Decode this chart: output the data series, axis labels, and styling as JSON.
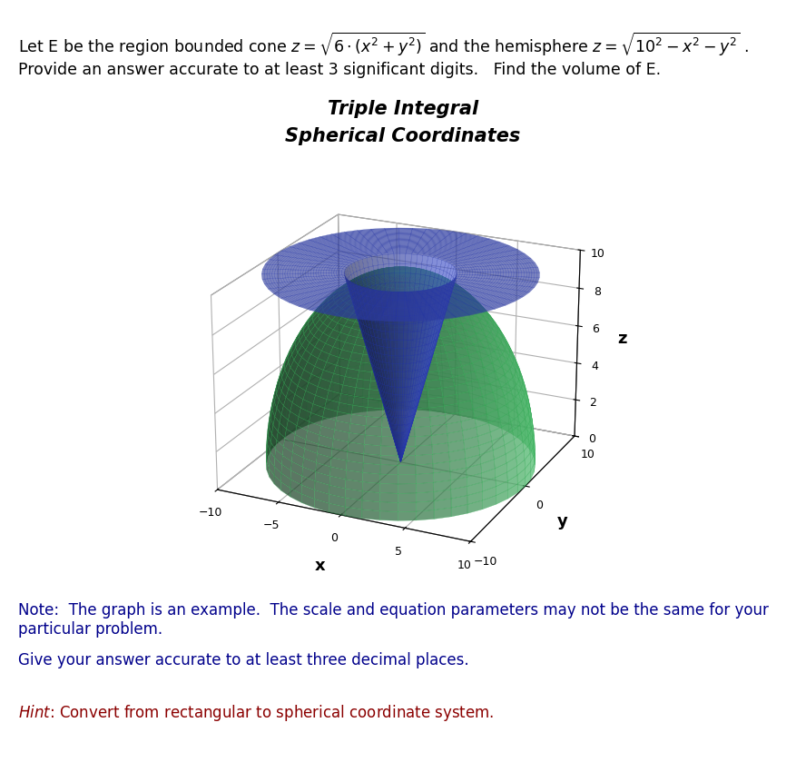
{
  "title_line1": "Triple Integral",
  "title_line2": "Spherical Coordinates",
  "title_fontsize": 15,
  "R": 10,
  "cone_k": 6,
  "xlim": [
    -10,
    10
  ],
  "ylim": [
    -10,
    10
  ],
  "zlim": [
    0,
    10
  ],
  "hemisphere_color": "#55cc77",
  "hemisphere_edge": "#33aa55",
  "cone_color": "#4455cc",
  "cone_edge": "#2233aa",
  "hemisphere_alpha": 0.72,
  "cone_alpha": 0.65,
  "text_color_black": "#000000",
  "hint_color": "#8B0000",
  "note_color": "#00008B",
  "elev": 22,
  "azim": -65
}
